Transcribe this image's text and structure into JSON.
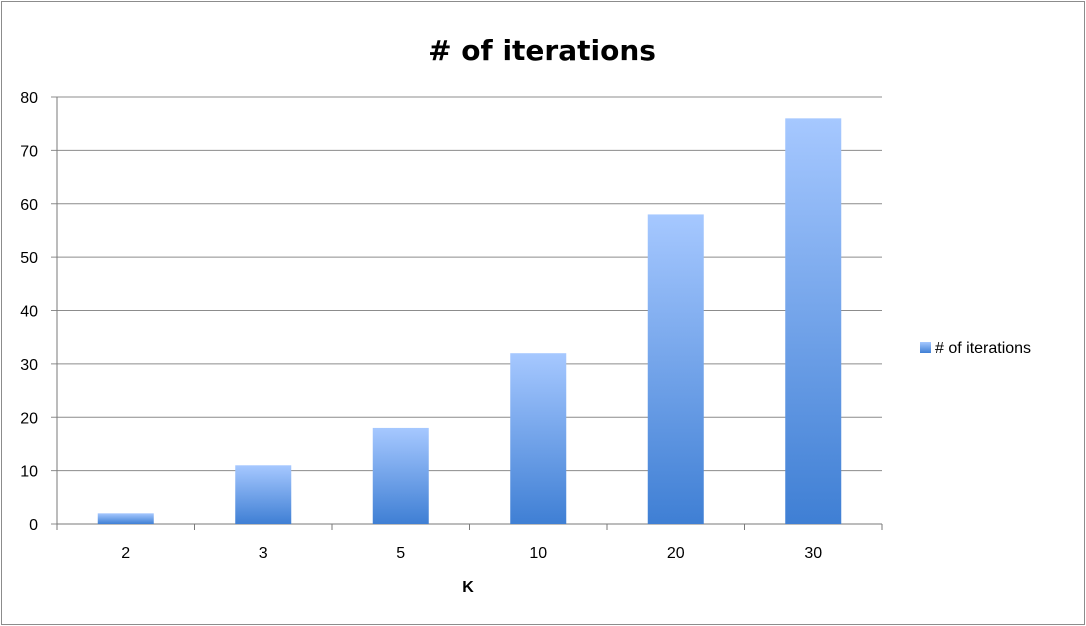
{
  "chart_data": {
    "type": "bar",
    "title": "# of iterations",
    "xlabel": "K",
    "ylabel": "",
    "categories": [
      "2",
      "3",
      "5",
      "10",
      "20",
      "30"
    ],
    "series": [
      {
        "name": "# of iterations",
        "values": [
          2,
          11,
          18,
          32,
          58,
          76
        ]
      }
    ],
    "ylim": [
      0,
      80
    ],
    "yticks": [
      0,
      10,
      20,
      30,
      40,
      50,
      60,
      70,
      80
    ],
    "grid": true,
    "legend_position": "right",
    "colors": {
      "bar_top": "#a6c8ff",
      "bar_bottom": "#3f7fd4",
      "grid": "#8c8c8c",
      "axis": "#7a7a7a"
    }
  }
}
